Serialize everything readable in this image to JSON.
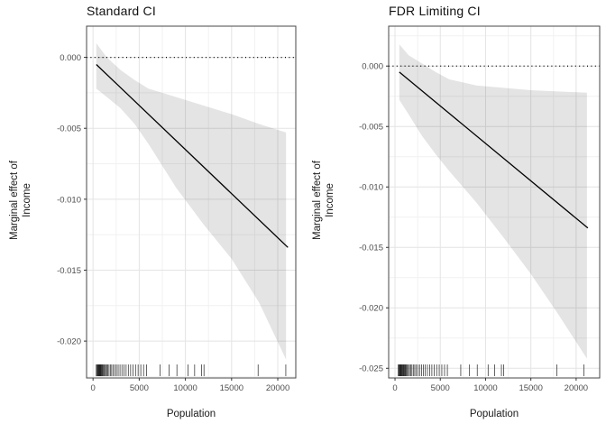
{
  "figure": {
    "background": "#ffffff",
    "colors": {
      "line": "#000000",
      "zero_line": "#000000",
      "band": "rgba(0,0,0,0.105)",
      "grid_major": "#e4e4e4",
      "grid_minor": "#f1f1f1",
      "border": "#474747",
      "tick": "#333333",
      "tick_label": "#4d4d4d",
      "text": "#1a1a1a"
    }
  },
  "chart_data": [
    {
      "type": "line",
      "title": "Standard CI",
      "xlabel": "Population",
      "ylabel_lines": [
        "Marginal effect of",
        "Income"
      ],
      "x_domain": [
        -700,
        21950
      ],
      "y_domain": [
        0.0022,
        -0.0226
      ],
      "x_tick_values": [
        0,
        5000,
        10000,
        15000,
        20000
      ],
      "x_tick_labels": [
        "0",
        "5000",
        "10000",
        "15000",
        "20000"
      ],
      "x_minor": [
        2500,
        7500,
        12500,
        17500
      ],
      "y_tick_values": [
        0,
        -0.005,
        -0.01,
        -0.015,
        -0.02
      ],
      "y_tick_labels": [
        "0.000",
        "-0.005",
        "-0.010",
        "-0.015",
        "-0.020"
      ],
      "y_minor": [
        -0.0025,
        -0.0075,
        -0.0125,
        -0.0175,
        -0.0225
      ],
      "zero_line_y": 0,
      "grid": true,
      "legend": "none",
      "line": {
        "x": [
          350,
          21100
        ],
        "y": [
          -0.0005,
          -0.0134
        ]
      },
      "band": {
        "x": [
          350,
          1500,
          3000,
          4500,
          6000,
          9000,
          12000,
          15000,
          18000,
          20900
        ],
        "upper": [
          0.001,
          0.0,
          -0.0009,
          -0.0016,
          -0.0022,
          -0.0028,
          -0.0034,
          -0.004,
          -0.0047,
          -0.0053
        ],
        "lower": [
          -0.0022,
          -0.0028,
          -0.0036,
          -0.0047,
          -0.0061,
          -0.0092,
          -0.0118,
          -0.0142,
          -0.0173,
          -0.0213
        ]
      },
      "rug_x": [
        350,
        430,
        500,
        540,
        580,
        620,
        660,
        700,
        740,
        790,
        840,
        900,
        960,
        1030,
        1100,
        1180,
        1270,
        1370,
        1480,
        1600,
        1730,
        1870,
        2020,
        2180,
        2350,
        2530,
        2720,
        2920,
        3130,
        3350,
        3580,
        3820,
        4070,
        4330,
        4600,
        4880,
        5170,
        5470,
        5780,
        7260,
        8230,
        9080,
        10280,
        11000,
        11750,
        12010,
        17870,
        20870
      ]
    },
    {
      "type": "line",
      "title": "FDR Limiting CI",
      "xlabel": "Population",
      "ylabel_lines": [
        "Marginal effect of",
        "Income"
      ],
      "x_domain": [
        -700,
        22600
      ],
      "y_domain": [
        0.0033,
        -0.0258
      ],
      "x_tick_values": [
        0,
        5000,
        10000,
        15000,
        20000
      ],
      "x_tick_labels": [
        "0",
        "5000",
        "10000",
        "15000",
        "20000"
      ],
      "x_minor": [
        2500,
        7500,
        12500,
        17500
      ],
      "y_tick_values": [
        0,
        -0.005,
        -0.01,
        -0.015,
        -0.02,
        -0.025
      ],
      "y_tick_labels": [
        "0.000",
        "-0.005",
        "-0.010",
        "-0.015",
        "-0.020",
        "-0.025"
      ],
      "y_minor": [
        0.0025,
        -0.0025,
        -0.0075,
        -0.0125,
        -0.0175,
        -0.0225
      ],
      "zero_line_y": 0,
      "grid": true,
      "legend": "none",
      "line": {
        "x": [
          470,
          21300
        ],
        "y": [
          -0.0005,
          -0.0134
        ]
      },
      "band": {
        "x": [
          470,
          1500,
          3000,
          4500,
          6000,
          9000,
          12000,
          15000,
          18000,
          21200
        ],
        "upper": [
          0.0018,
          0.0009,
          0.0002,
          -0.0005,
          -0.0011,
          -0.0016,
          -0.0018,
          -0.002,
          -0.0021,
          -0.0022
        ],
        "lower": [
          -0.0028,
          -0.004,
          -0.0058,
          -0.0073,
          -0.0087,
          -0.0113,
          -0.0142,
          -0.0172,
          -0.0205,
          -0.0242
        ]
      },
      "rug_x": [
        350,
        430,
        500,
        540,
        580,
        620,
        660,
        700,
        740,
        790,
        840,
        900,
        960,
        1030,
        1100,
        1180,
        1270,
        1370,
        1480,
        1600,
        1730,
        1870,
        2020,
        2180,
        2350,
        2530,
        2720,
        2920,
        3130,
        3350,
        3580,
        3820,
        4070,
        4330,
        4600,
        4880,
        5170,
        5470,
        5780,
        7260,
        8230,
        9080,
        10280,
        11000,
        11750,
        12010,
        17870,
        20870
      ]
    }
  ]
}
